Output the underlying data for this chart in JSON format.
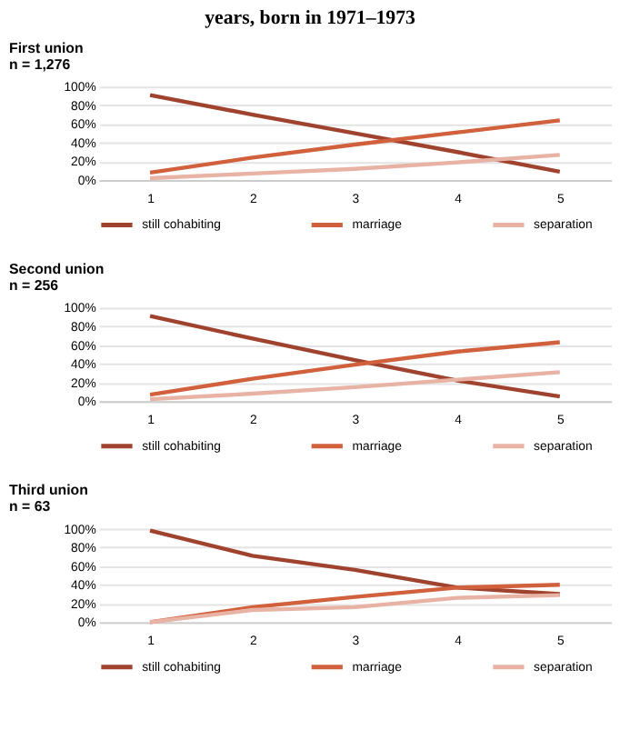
{
  "chart_data": [
    {
      "type": "line",
      "title": "First union",
      "subtitle": "n = 1,276",
      "annotations": [
        "years, born in 1971–1973"
      ],
      "categories": [
        "1",
        "2",
        "3",
        "4",
        "5"
      ],
      "ylim": [
        0,
        100
      ],
      "yticks": [
        {
          "value": 0,
          "label": "0%"
        },
        {
          "value": 20,
          "label": "20%"
        },
        {
          "value": 40,
          "label": "40%"
        },
        {
          "value": 60,
          "label": "60%"
        },
        {
          "value": 80,
          "label": "80%"
        },
        {
          "value": 100,
          "label": "100%"
        }
      ],
      "grid": "y",
      "legend": "bottom",
      "marker": "none",
      "line_style": "solid",
      "series": [
        {
          "name": "still cohabiting",
          "color": "#a0432e",
          "values": [
            91,
            70,
            50,
            30,
            9
          ]
        },
        {
          "name": "marriage",
          "color": "#d1603d",
          "values": [
            8,
            24,
            38,
            51,
            64
          ]
        },
        {
          "name": "separation",
          "color": "#e8b3a5",
          "values": [
            2,
            7,
            12,
            19,
            27
          ]
        }
      ]
    },
    {
      "type": "line",
      "title": "Second union",
      "subtitle": "n = 256",
      "categories": [
        "1",
        "2",
        "3",
        "4",
        "5"
      ],
      "ylim": [
        0,
        100
      ],
      "yticks": [
        {
          "value": 0,
          "label": "0%"
        },
        {
          "value": 20,
          "label": "20%"
        },
        {
          "value": 40,
          "label": "40%"
        },
        {
          "value": 60,
          "label": "60%"
        },
        {
          "value": 80,
          "label": "80%"
        },
        {
          "value": 100,
          "label": "100%"
        }
      ],
      "grid": "y",
      "legend": "bottom",
      "marker": "none",
      "line_style": "solid",
      "series": [
        {
          "name": "still cohabiting",
          "color": "#a0432e",
          "values": [
            91,
            67,
            44,
            22,
            5
          ]
        },
        {
          "name": "marriage",
          "color": "#d1603d",
          "values": [
            7,
            24,
            39,
            53,
            63
          ]
        },
        {
          "name": "separation",
          "color": "#e8b3a5",
          "values": [
            2,
            8,
            15,
            23,
            31
          ]
        }
      ]
    },
    {
      "type": "line",
      "title": "Third union",
      "subtitle": "n = 63",
      "categories": [
        "1",
        "2",
        "3",
        "4",
        "5"
      ],
      "ylim": [
        0,
        100
      ],
      "yticks": [
        {
          "value": 0,
          "label": "0%"
        },
        {
          "value": 20,
          "label": "20%"
        },
        {
          "value": 40,
          "label": "40%"
        },
        {
          "value": 60,
          "label": "60%"
        },
        {
          "value": 80,
          "label": "80%"
        },
        {
          "value": 100,
          "label": "100%"
        }
      ],
      "grid": "y",
      "legend": "bottom",
      "marker": "none",
      "line_style": "solid",
      "series": [
        {
          "name": "still cohabiting",
          "color": "#a0432e",
          "values": [
            98,
            71,
            56,
            37,
            30
          ]
        },
        {
          "name": "marriage",
          "color": "#d1603d",
          "values": [
            0,
            16,
            27,
            37,
            40
          ]
        },
        {
          "name": "separation",
          "color": "#e8b3a5",
          "values": [
            0,
            13,
            16,
            26,
            29
          ]
        }
      ]
    }
  ]
}
